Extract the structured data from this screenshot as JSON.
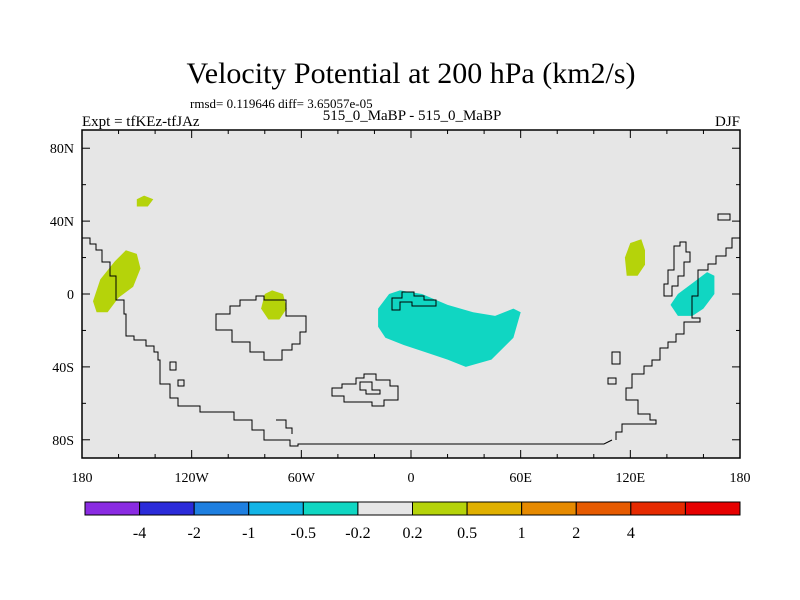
{
  "chart_data": {
    "type": "contour-map",
    "title": "Velocity Potential at 200 hPa (km2/s)",
    "subtitle": "rmsd= 0.119646 diff= 3.65057e-05",
    "left_label": "Expt = tfKEz-tfJAz",
    "center_label": "515_0_MaBP - 515_0_MaBP",
    "right_label": "DJF",
    "x_ticks": [
      {
        "value": -180,
        "label": "180"
      },
      {
        "value": -120,
        "label": "120W"
      },
      {
        "value": -60,
        "label": "60W"
      },
      {
        "value": 0,
        "label": "0"
      },
      {
        "value": 60,
        "label": "60E"
      },
      {
        "value": 120,
        "label": "120E"
      },
      {
        "value": 180,
        "label": "180"
      }
    ],
    "y_ticks": [
      {
        "value": 80,
        "label": "80N"
      },
      {
        "value": 40,
        "label": "40N"
      },
      {
        "value": 0,
        "label": "0"
      },
      {
        "value": -40,
        "label": "40S"
      },
      {
        "value": -80,
        "label": "80S"
      }
    ],
    "xlim": [
      -180,
      180
    ],
    "ylim": [
      -90,
      90
    ],
    "background_color": "#e6e6e6",
    "colorbar": {
      "colors": [
        "#8a2be2",
        "#2b2bd9",
        "#1e7fe0",
        "#12b4e6",
        "#10d6c2",
        "#e6e6e6",
        "#b5d30a",
        "#e0b000",
        "#e68a00",
        "#e65a00",
        "#e62a00",
        "#e60000"
      ],
      "labels": [
        "-4",
        "-2",
        "-1",
        "-0.5",
        "-0.2",
        "0.2",
        "0.5",
        "1",
        "2",
        "4"
      ]
    },
    "regions": [
      {
        "level": "0.2 to 0.5",
        "color": "#b5d30a",
        "points": [
          [
            -162,
            18
          ],
          [
            -156,
            24
          ],
          [
            -150,
            22
          ],
          [
            -148,
            14
          ],
          [
            -152,
            4
          ],
          [
            -160,
            -2
          ],
          [
            -166,
            -10
          ],
          [
            -172,
            -10
          ],
          [
            -174,
            -4
          ],
          [
            -170,
            8
          ]
        ]
      },
      {
        "level": "0.2 to 0.5",
        "color": "#b5d30a",
        "points": [
          [
            -150,
            52
          ],
          [
            -146,
            54
          ],
          [
            -141,
            52
          ],
          [
            -144,
            48
          ],
          [
            -150,
            48
          ]
        ]
      },
      {
        "level": "0.2 to 0.5",
        "color": "#b5d30a",
        "points": [
          [
            -80,
            0
          ],
          [
            -76,
            2
          ],
          [
            -70,
            0
          ],
          [
            -68,
            -8
          ],
          [
            -72,
            -14
          ],
          [
            -78,
            -14
          ],
          [
            -82,
            -8
          ]
        ]
      },
      {
        "level": "0.2 to 0.5",
        "color": "#b5d30a",
        "points": [
          [
            120,
            28
          ],
          [
            126,
            30
          ],
          [
            128,
            24
          ],
          [
            128,
            16
          ],
          [
            124,
            10
          ],
          [
            118,
            10
          ],
          [
            117,
            20
          ]
        ]
      },
      {
        "level": "-0.5 to -0.2",
        "color": "#10d6c2",
        "points": [
          [
            -12,
            0
          ],
          [
            -6,
            2
          ],
          [
            6,
            0
          ],
          [
            20,
            -6
          ],
          [
            34,
            -10
          ],
          [
            46,
            -12
          ],
          [
            56,
            -8
          ],
          [
            60,
            -10
          ],
          [
            56,
            -24
          ],
          [
            44,
            -36
          ],
          [
            30,
            -40
          ],
          [
            20,
            -36
          ],
          [
            8,
            -32
          ],
          [
            -4,
            -28
          ],
          [
            -14,
            -24
          ],
          [
            -18,
            -18
          ],
          [
            -18,
            -8
          ]
        ]
      },
      {
        "level": "-0.5 to -0.2",
        "color": "#10d6c2",
        "points": [
          [
            154,
            6
          ],
          [
            162,
            12
          ],
          [
            166,
            10
          ],
          [
            166,
            0
          ],
          [
            160,
            -8
          ],
          [
            154,
            -12
          ],
          [
            146,
            -12
          ],
          [
            142,
            -6
          ],
          [
            146,
            0
          ]
        ]
      }
    ]
  }
}
